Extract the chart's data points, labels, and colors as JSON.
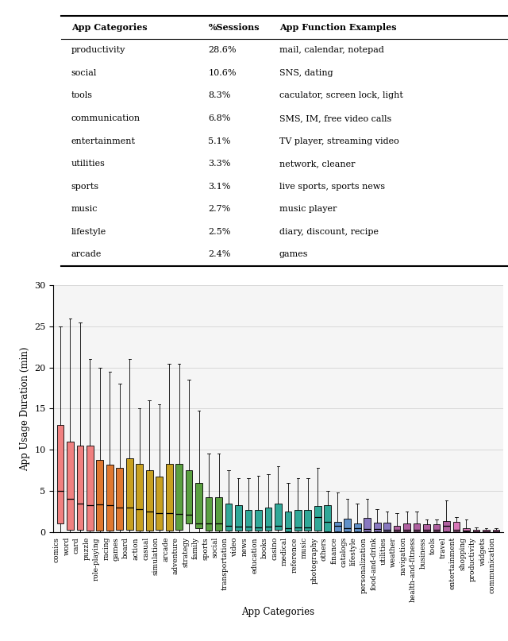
{
  "table": {
    "headers": [
      "App Categories",
      "%Sessions",
      "App Function Examples"
    ],
    "rows": [
      [
        "productivity",
        "28.6%",
        "mail, calendar, notepad"
      ],
      [
        "social",
        "10.6%",
        "SNS, dating"
      ],
      [
        "tools",
        "8.3%",
        "caculator, screen lock, light"
      ],
      [
        "communication",
        "6.8%",
        "SMS, IM, free video calls"
      ],
      [
        "entertainment",
        "5.1%",
        "TV player, streaming video"
      ],
      [
        "utilities",
        "3.3%",
        "network, cleaner"
      ],
      [
        "sports",
        "3.1%",
        "live sports, sports news"
      ],
      [
        "music",
        "2.7%",
        "music player"
      ],
      [
        "lifestyle",
        "2.5%",
        "diary, discount, recipe"
      ],
      [
        "arcade",
        "2.4%",
        "games"
      ]
    ]
  },
  "boxplot": {
    "categories": [
      "comics",
      "word",
      "card",
      "puzzle",
      "role-playing",
      "racing",
      "games",
      "board",
      "action",
      "casual",
      "simulation",
      "arcade",
      "adventure",
      "strategy",
      "family",
      "sports",
      "social",
      "transportation",
      "video",
      "news",
      "education",
      "books",
      "casino",
      "medical",
      "reference",
      "music",
      "photography",
      "others",
      "finance",
      "catalogs",
      "lifestyle",
      "personalization",
      "food-and-drink",
      "utilities",
      "weather",
      "navigation",
      "health-and-fitness",
      "business",
      "tools",
      "travel",
      "entertainment",
      "shopping",
      "productivity",
      "widgets",
      "communication"
    ],
    "stats": {
      "comics": {
        "whislo": 0.0,
        "q1": 1.0,
        "med": 5.0,
        "q3": 13.0,
        "whishi": 25.0
      },
      "word": {
        "whislo": 0.0,
        "q1": 0.3,
        "med": 4.0,
        "q3": 11.0,
        "whishi": 26.0
      },
      "card": {
        "whislo": 0.0,
        "q1": 0.3,
        "med": 3.5,
        "q3": 10.5,
        "whishi": 25.5
      },
      "puzzle": {
        "whislo": 0.0,
        "q1": 0.2,
        "med": 3.3,
        "q3": 10.5,
        "whishi": 21.0
      },
      "role-playing": {
        "whislo": 0.0,
        "q1": 0.2,
        "med": 3.4,
        "q3": 8.8,
        "whishi": 20.0
      },
      "racing": {
        "whislo": 0.0,
        "q1": 0.2,
        "med": 3.3,
        "q3": 8.2,
        "whishi": 19.5
      },
      "games": {
        "whislo": 0.0,
        "q1": 0.3,
        "med": 3.0,
        "q3": 7.8,
        "whishi": 18.0
      },
      "board": {
        "whislo": 0.0,
        "q1": 0.3,
        "med": 3.0,
        "q3": 9.0,
        "whishi": 21.0
      },
      "action": {
        "whislo": 0.0,
        "q1": 0.2,
        "med": 2.8,
        "q3": 8.3,
        "whishi": 15.0
      },
      "casual": {
        "whislo": 0.0,
        "q1": 0.2,
        "med": 2.5,
        "q3": 7.5,
        "whishi": 16.0
      },
      "simulation": {
        "whislo": 0.0,
        "q1": 0.3,
        "med": 2.3,
        "q3": 6.7,
        "whishi": 15.5
      },
      "arcade": {
        "whislo": 0.0,
        "q1": 0.2,
        "med": 2.3,
        "q3": 8.3,
        "whishi": 20.5
      },
      "adventure": {
        "whislo": 0.0,
        "q1": 0.3,
        "med": 2.2,
        "q3": 8.3,
        "whishi": 20.5
      },
      "strategy": {
        "whislo": 0.0,
        "q1": 1.0,
        "med": 2.1,
        "q3": 7.5,
        "whishi": 18.5
      },
      "family": {
        "whislo": 0.0,
        "q1": 0.5,
        "med": 1.0,
        "q3": 6.0,
        "whishi": 14.8
      },
      "sports": {
        "whislo": 0.0,
        "q1": 0.2,
        "med": 1.0,
        "q3": 4.2,
        "whishi": 9.5
      },
      "social": {
        "whislo": 0.0,
        "q1": 0.2,
        "med": 1.0,
        "q3": 4.2,
        "whishi": 9.5
      },
      "transportation": {
        "whislo": 0.0,
        "q1": 0.2,
        "med": 0.8,
        "q3": 3.5,
        "whishi": 7.5
      },
      "video": {
        "whislo": 0.0,
        "q1": 0.2,
        "med": 0.7,
        "q3": 3.3,
        "whishi": 6.5
      },
      "news": {
        "whislo": 0.0,
        "q1": 0.2,
        "med": 0.7,
        "q3": 2.7,
        "whishi": 6.5
      },
      "education": {
        "whislo": 0.0,
        "q1": 0.2,
        "med": 0.6,
        "q3": 2.7,
        "whishi": 6.8
      },
      "books": {
        "whislo": 0.0,
        "q1": 0.2,
        "med": 0.7,
        "q3": 3.0,
        "whishi": 7.0
      },
      "casino": {
        "whislo": 0.0,
        "q1": 0.3,
        "med": 0.8,
        "q3": 3.5,
        "whishi": 8.0
      },
      "medical": {
        "whislo": 0.0,
        "q1": 0.1,
        "med": 0.5,
        "q3": 2.5,
        "whishi": 6.0
      },
      "reference": {
        "whislo": 0.0,
        "q1": 0.2,
        "med": 0.6,
        "q3": 2.7,
        "whishi": 6.5
      },
      "music": {
        "whislo": 0.0,
        "q1": 0.2,
        "med": 0.6,
        "q3": 2.7,
        "whishi": 6.5
      },
      "photography": {
        "whislo": 0.0,
        "q1": 0.2,
        "med": 1.8,
        "q3": 3.2,
        "whishi": 7.8
      },
      "others": {
        "whislo": 0.0,
        "q1": 0.1,
        "med": 1.2,
        "q3": 3.3,
        "whishi": 5.0
      },
      "finance": {
        "whislo": 0.0,
        "q1": 0.1,
        "med": 0.8,
        "q3": 1.2,
        "whishi": 4.8
      },
      "catalogs": {
        "whislo": 0.0,
        "q1": 0.1,
        "med": 0.5,
        "q3": 1.6,
        "whishi": 4.0
      },
      "lifestyle": {
        "whislo": 0.0,
        "q1": 0.1,
        "med": 0.5,
        "q3": 1.0,
        "whishi": 3.5
      },
      "personalization": {
        "whislo": 0.0,
        "q1": 0.1,
        "med": 0.4,
        "q3": 1.7,
        "whishi": 4.0
      },
      "food-and-drink": {
        "whislo": 0.0,
        "q1": 0.1,
        "med": 0.4,
        "q3": 1.1,
        "whishi": 2.8
      },
      "utilities": {
        "whislo": 0.0,
        "q1": 0.1,
        "med": 0.3,
        "q3": 1.1,
        "whishi": 2.5
      },
      "weather": {
        "whislo": 0.0,
        "q1": 0.1,
        "med": 0.3,
        "q3": 0.8,
        "whishi": 2.3
      },
      "navigation": {
        "whislo": 0.0,
        "q1": 0.1,
        "med": 0.3,
        "q3": 1.0,
        "whishi": 2.5
      },
      "health-and-fitness": {
        "whislo": 0.0,
        "q1": 0.1,
        "med": 0.3,
        "q3": 1.0,
        "whishi": 2.5
      },
      "business": {
        "whislo": 0.0,
        "q1": 0.1,
        "med": 0.3,
        "q3": 0.9,
        "whishi": 1.5
      },
      "tools": {
        "whislo": 0.0,
        "q1": 0.1,
        "med": 0.3,
        "q3": 0.9,
        "whishi": 1.5
      },
      "travel": {
        "whislo": 0.0,
        "q1": 0.1,
        "med": 0.8,
        "q3": 1.3,
        "whishi": 3.8
      },
      "entertainment": {
        "whislo": 0.0,
        "q1": 0.1,
        "med": 0.3,
        "q3": 1.2,
        "whishi": 1.8
      },
      "shopping": {
        "whislo": 0.0,
        "q1": 0.1,
        "med": 0.2,
        "q3": 0.5,
        "whishi": 1.5
      },
      "productivity": {
        "whislo": 0.0,
        "q1": 0.05,
        "med": 0.1,
        "q3": 0.3,
        "whishi": 0.6
      },
      "widgets": {
        "whislo": 0.0,
        "q1": 0.05,
        "med": 0.1,
        "q3": 0.3,
        "whishi": 0.5
      },
      "communication": {
        "whislo": 0.0,
        "q1": 0.05,
        "med": 0.1,
        "q3": 0.3,
        "whishi": 0.5
      }
    },
    "colors": {
      "comics": "#f08080",
      "word": "#f08080",
      "card": "#f08080",
      "puzzle": "#f08080",
      "role-playing": "#e07830",
      "racing": "#e07830",
      "games": "#e07830",
      "board": "#c8a020",
      "action": "#c8a020",
      "casual": "#c8a020",
      "simulation": "#c8a020",
      "arcade": "#c8a020",
      "adventure": "#5aa040",
      "strategy": "#5aa040",
      "family": "#5aa040",
      "sports": "#5aa040",
      "social": "#5aa040",
      "transportation": "#30a898",
      "video": "#30a898",
      "news": "#30a898",
      "education": "#30a898",
      "books": "#30a898",
      "casino": "#30a898",
      "medical": "#30a898",
      "reference": "#30a898",
      "music": "#30a898",
      "photography": "#30a898",
      "others": "#30a898",
      "finance": "#6090c8",
      "catalogs": "#6090c8",
      "lifestyle": "#6090c8",
      "personalization": "#8878c0",
      "food-and-drink": "#8878c0",
      "utilities": "#8878c0",
      "weather": "#b060a0",
      "navigation": "#b060a0",
      "health-and-fitness": "#b060a0",
      "business": "#b060a0",
      "tools": "#b060a0",
      "travel": "#b060a0",
      "entertainment": "#d878b8",
      "shopping": "#d878b8",
      "productivity": "#d878b8",
      "widgets": "#d878b8",
      "communication": "#d878b8"
    },
    "ylim": [
      0,
      30
    ],
    "yticks": [
      0,
      5,
      10,
      15,
      20,
      25,
      30
    ],
    "ylabel": "App Usage Duration (min)",
    "xlabel": "App Categories"
  }
}
